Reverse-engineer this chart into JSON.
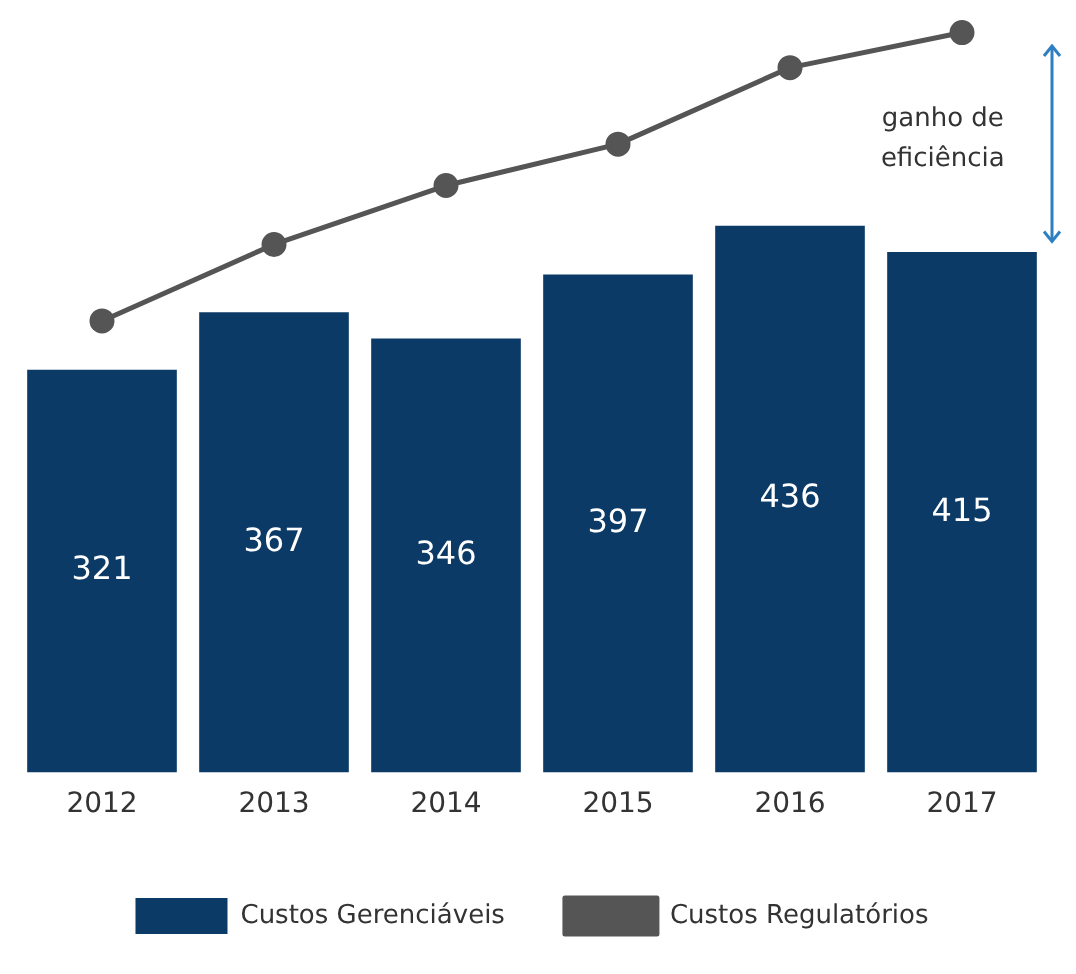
{
  "chart_data": {
    "type": "bar",
    "categories": [
      "2012",
      "2013",
      "2014",
      "2015",
      "2016",
      "2017"
    ],
    "series": [
      {
        "name": "Custos Gerenciáveis",
        "color": "#0b3a66",
        "values": [
          321,
          367,
          346,
          397,
          436,
          415
        ],
        "value_labels": [
          "321",
          "367",
          "346",
          "397",
          "436",
          "415"
        ]
      },
      {
        "name": "Custos Regulatórios",
        "type": "line",
        "color": "#555555",
        "values": [
          360,
          421,
          468,
          501,
          562,
          590
        ]
      }
    ],
    "tick_labels": "x",
    "marker": "circle",
    "legend": "bottom",
    "grid": false,
    "annotations": [
      "ganho de eficiência"
    ]
  }
}
